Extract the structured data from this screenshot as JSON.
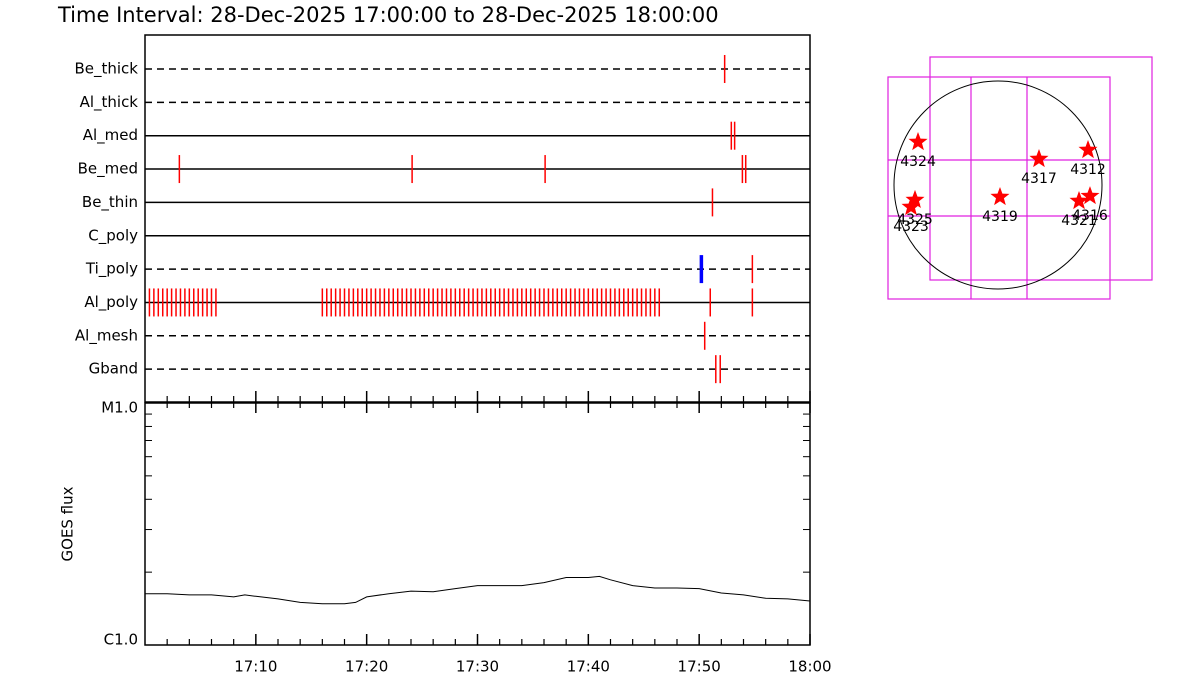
{
  "chart_data": [
    {
      "type": "timeline",
      "title": "Time Interval: 28-Dec-2025 17:00:00 to 28-Dec-2025 18:00:00",
      "xlim": [
        0,
        60
      ],
      "color": "#ff0000",
      "series": [
        {
          "name": "Be_thick",
          "line": "dashed",
          "values": [
            52.3
          ]
        },
        {
          "name": "Al_thick",
          "line": "dashed",
          "values": []
        },
        {
          "name": "Al_med",
          "line": "solid",
          "values": [
            52.9,
            53.2
          ]
        },
        {
          "name": "Be_med",
          "line": "solid",
          "values": [
            3.1,
            24.1,
            36.1,
            53.9,
            54.2
          ]
        },
        {
          "name": "Be_thin",
          "line": "solid",
          "values": [
            51.2
          ]
        },
        {
          "name": "C_poly",
          "line": "solid",
          "values": []
        },
        {
          "name": "Ti_poly",
          "line": "dashed",
          "values": [
            50.2,
            54.8
          ],
          "colors": [
            "#0000ff",
            "#ff0000"
          ]
        },
        {
          "name": "Al_poly",
          "line": "solid",
          "values": [
            0.4,
            0.8,
            1.2,
            1.6,
            2.0,
            2.4,
            2.8,
            3.2,
            3.6,
            4.0,
            4.4,
            4.8,
            5.2,
            5.6,
            6.0,
            6.4,
            16.0,
            16.4,
            16.8,
            17.2,
            17.6,
            18.0,
            18.4,
            18.8,
            19.2,
            19.6,
            20.0,
            20.4,
            20.8,
            21.2,
            21.6,
            22.0,
            22.4,
            22.8,
            23.2,
            23.6,
            24.0,
            24.4,
            24.8,
            25.2,
            25.6,
            26.0,
            26.4,
            26.8,
            27.2,
            27.6,
            28.0,
            28.4,
            28.8,
            29.2,
            29.6,
            30.0,
            30.4,
            30.8,
            31.2,
            31.6,
            32.0,
            32.4,
            32.8,
            33.2,
            33.6,
            34.0,
            34.4,
            34.8,
            35.2,
            35.6,
            36.0,
            36.4,
            36.8,
            37.2,
            37.6,
            38.0,
            38.4,
            38.8,
            39.2,
            39.6,
            40.0,
            40.4,
            40.8,
            41.2,
            41.6,
            42.0,
            42.4,
            42.8,
            43.2,
            43.6,
            44.0,
            44.4,
            44.8,
            45.2,
            45.6,
            46.0,
            46.4,
            51.0,
            54.8
          ]
        },
        {
          "name": "Al_mesh",
          "line": "dashed",
          "values": [
            50.5
          ]
        },
        {
          "name": "Gband",
          "line": "dashed",
          "values": [
            51.5,
            51.9
          ]
        }
      ]
    },
    {
      "type": "line",
      "ylabel": "GOES flux",
      "log_scale": true,
      "color": "#000000",
      "xlim": [
        0,
        60
      ],
      "xticks": [
        {
          "value": 10,
          "label": "17:10"
        },
        {
          "value": 20,
          "label": "17:20"
        },
        {
          "value": 30,
          "label": "17:30"
        },
        {
          "value": 40,
          "label": "17:40"
        },
        {
          "value": 50,
          "label": "17:50"
        },
        {
          "value": 60,
          "label": "18:00"
        }
      ],
      "xminorticks": [
        2,
        4,
        6,
        8,
        12,
        14,
        16,
        18,
        22,
        24,
        26,
        28,
        32,
        34,
        36,
        38,
        42,
        44,
        46,
        48,
        52,
        54,
        56,
        58
      ],
      "ylim": [
        1e-06,
        1e-05
      ],
      "yticks": [
        {
          "value": 1e-06,
          "label": "C1.0"
        },
        {
          "value": 1e-05,
          "label": "M1.0"
        }
      ],
      "yminorticks": [
        2e-06,
        3e-06,
        4e-06,
        5e-06,
        6e-06,
        7e-06,
        8e-06,
        9e-06
      ],
      "x": [
        0,
        2,
        4,
        6,
        8,
        9,
        10,
        12,
        14,
        16,
        18,
        19,
        20,
        22,
        24,
        26,
        28,
        30,
        32,
        34,
        36,
        38,
        40,
        41,
        42,
        44,
        46,
        48,
        50,
        52,
        54,
        56,
        58,
        60
      ],
      "values": [
        1.63e-06,
        1.63e-06,
        1.61e-06,
        1.61e-06,
        1.58e-06,
        1.61e-06,
        1.59e-06,
        1.55e-06,
        1.5e-06,
        1.48e-06,
        1.48e-06,
        1.5e-06,
        1.58e-06,
        1.63e-06,
        1.67e-06,
        1.66e-06,
        1.71e-06,
        1.76e-06,
        1.76e-06,
        1.76e-06,
        1.81e-06,
        1.9e-06,
        1.9e-06,
        1.92e-06,
        1.86e-06,
        1.76e-06,
        1.72e-06,
        1.72e-06,
        1.71e-06,
        1.64e-06,
        1.61e-06,
        1.56e-06,
        1.55e-06,
        1.52e-06
      ]
    },
    {
      "type": "scatter",
      "color": "#ff0000",
      "labels": [
        "4324",
        "4325",
        "4323",
        "4319",
        "4317",
        "4312",
        "4321",
        "4316"
      ],
      "x": [
        -738,
        -766,
        -803,
        18,
        378,
        831,
        748,
        849
      ],
      "values": [
        397,
        -138,
        -203,
        -111,
        240,
        323,
        -148,
        -102
      ]
    }
  ]
}
